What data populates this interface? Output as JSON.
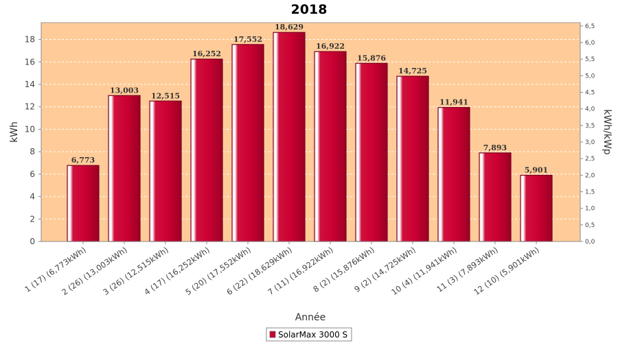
{
  "chart_data": {
    "type": "bar",
    "title": "2018",
    "xlabel": "Année",
    "ylabel": "kWh",
    "ylabel_right": "kWh/kWp",
    "ylim": [
      0,
      19.5
    ],
    "yticks": [
      0,
      2,
      4,
      6,
      8,
      10,
      12,
      14,
      16,
      18
    ],
    "ylim_right": [
      0,
      6.6
    ],
    "yticks_right": [
      "0,0",
      "0,5",
      "1,0",
      "1,5",
      "2,0",
      "2,5",
      "3,0",
      "3,5",
      "4,0",
      "4,5",
      "5,0",
      "5,5",
      "6,0",
      "6,5"
    ],
    "yticks_right_values": [
      0,
      0.5,
      1.0,
      1.5,
      2.0,
      2.5,
      3.0,
      3.5,
      4.0,
      4.5,
      5.0,
      5.5,
      6.0,
      6.5
    ],
    "categories": [
      "1 (17)  (6,773kWh)",
      "2 (26)  (13,003kWh)",
      "3 (26)  (12,515kWh)",
      "4 (17)  (16,252kWh)",
      "5 (20)  (17,552kWh)",
      "6 (22)  (18,629kWh)",
      "7 (11)  (16,922kWh)",
      "8 (2)  (15,876kWh)",
      "9 (2)  (14,725kWh)",
      "10 (4)  (11,941kWh)",
      "11 (3)  (7,893kWh)",
      "12 (10)  (5,901kWh)"
    ],
    "values": [
      6.773,
      13.003,
      12.515,
      16.252,
      17.552,
      18.629,
      16.922,
      15.876,
      14.725,
      11.941,
      7.893,
      5.901
    ],
    "value_labels": [
      "6,773",
      "13,003",
      "12,515",
      "16,252",
      "17,552",
      "18,629",
      "16,922",
      "15,876",
      "14,725",
      "11,941",
      "7,893",
      "5,901"
    ],
    "series": [
      {
        "name": "SolarMax 3000 S"
      }
    ],
    "grid": true,
    "legend": "bottom-center",
    "colors": {
      "plot_background": "#ffcc99",
      "bar": "#cc0033",
      "grid": "#ffffff"
    }
  }
}
